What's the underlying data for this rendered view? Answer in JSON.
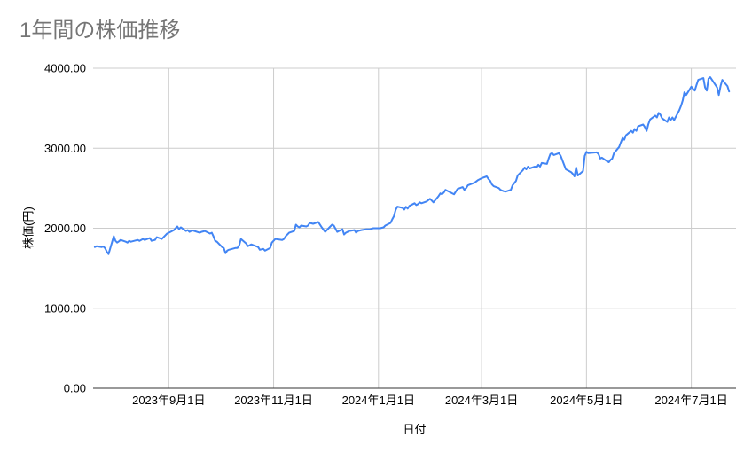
{
  "colors": {
    "line": "#4285f4",
    "grid": "#cccccc",
    "axis": "#333333",
    "title": "#757575",
    "label": "#000000",
    "background": "#ffffff"
  },
  "chart_data": {
    "type": "line",
    "title": "1年間の株価推移",
    "xlabel": "日付",
    "ylabel": "株価(円)",
    "ylim": [
      0,
      4000
    ],
    "grid": true,
    "legend": "none",
    "x_domain": [
      "2023-07-19",
      "2024-07-27"
    ],
    "y_ticks": [
      {
        "value": 0,
        "label": "0.00"
      },
      {
        "value": 1000,
        "label": "1000.00"
      },
      {
        "value": 2000,
        "label": "2000.00"
      },
      {
        "value": 3000,
        "label": "3000.00"
      },
      {
        "value": 4000,
        "label": "4000.00"
      }
    ],
    "x_ticks": [
      {
        "date": "2023-09-01",
        "label": "2023年9月1日"
      },
      {
        "date": "2023-11-01",
        "label": "2023年11月1日"
      },
      {
        "date": "2024-01-01",
        "label": "2024年1月1日"
      },
      {
        "date": "2024-03-01",
        "label": "2024年3月1日"
      },
      {
        "date": "2024-05-01",
        "label": "2024年5月1日"
      },
      {
        "date": "2024-07-01",
        "label": "2024年7月1日"
      }
    ],
    "series": [
      {
        "color": "#4285f4",
        "points": [
          [
            "2023-07-20",
            1765
          ],
          [
            "2023-07-21",
            1775
          ],
          [
            "2023-07-24",
            1765
          ],
          [
            "2023-07-25",
            1772
          ],
          [
            "2023-07-26",
            1748
          ],
          [
            "2023-07-27",
            1705
          ],
          [
            "2023-07-28",
            1676
          ],
          [
            "2023-07-31",
            1900
          ],
          [
            "2023-08-01",
            1843
          ],
          [
            "2023-08-02",
            1821
          ],
          [
            "2023-08-03",
            1836
          ],
          [
            "2023-08-04",
            1854
          ],
          [
            "2023-08-07",
            1832
          ],
          [
            "2023-08-08",
            1821
          ],
          [
            "2023-08-09",
            1843
          ],
          [
            "2023-08-10",
            1832
          ],
          [
            "2023-08-14",
            1854
          ],
          [
            "2023-08-15",
            1843
          ],
          [
            "2023-08-17",
            1866
          ],
          [
            "2023-08-18",
            1854
          ],
          [
            "2023-08-21",
            1877
          ],
          [
            "2023-08-22",
            1843
          ],
          [
            "2023-08-24",
            1854
          ],
          [
            "2023-08-25",
            1888
          ],
          [
            "2023-08-28",
            1866
          ],
          [
            "2023-08-30",
            1910
          ],
          [
            "2023-08-31",
            1933
          ],
          [
            "2023-09-01",
            1944
          ],
          [
            "2023-09-04",
            1977
          ],
          [
            "2023-09-05",
            2000
          ],
          [
            "2023-09-06",
            2022
          ],
          [
            "2023-09-07",
            1988
          ],
          [
            "2023-09-08",
            2011
          ],
          [
            "2023-09-11",
            1966
          ],
          [
            "2023-09-12",
            1977
          ],
          [
            "2023-09-13",
            1955
          ],
          [
            "2023-09-14",
            1966
          ],
          [
            "2023-09-15",
            1972
          ],
          [
            "2023-09-19",
            1944
          ],
          [
            "2023-09-20",
            1955
          ],
          [
            "2023-09-22",
            1966
          ],
          [
            "2023-09-25",
            1933
          ],
          [
            "2023-09-26",
            1944
          ],
          [
            "2023-09-27",
            1899
          ],
          [
            "2023-09-28",
            1843
          ],
          [
            "2023-09-29",
            1832
          ],
          [
            "2023-10-02",
            1765
          ],
          [
            "2023-10-03",
            1754
          ],
          [
            "2023-10-04",
            1687
          ],
          [
            "2023-10-05",
            1720
          ],
          [
            "2023-10-06",
            1731
          ],
          [
            "2023-10-10",
            1754
          ],
          [
            "2023-10-11",
            1754
          ],
          [
            "2023-10-12",
            1787
          ],
          [
            "2023-10-13",
            1866
          ],
          [
            "2023-10-16",
            1810
          ],
          [
            "2023-10-17",
            1776
          ],
          [
            "2023-10-18",
            1787
          ],
          [
            "2023-10-19",
            1798
          ],
          [
            "2023-10-23",
            1765
          ],
          [
            "2023-10-24",
            1731
          ],
          [
            "2023-10-26",
            1742
          ],
          [
            "2023-10-27",
            1720
          ],
          [
            "2023-10-30",
            1754
          ],
          [
            "2023-10-31",
            1821
          ],
          [
            "2023-11-01",
            1843
          ],
          [
            "2023-11-02",
            1866
          ],
          [
            "2023-11-06",
            1854
          ],
          [
            "2023-11-07",
            1866
          ],
          [
            "2023-11-08",
            1899
          ],
          [
            "2023-11-09",
            1921
          ],
          [
            "2023-11-10",
            1944
          ],
          [
            "2023-11-13",
            1966
          ],
          [
            "2023-11-14",
            2044
          ],
          [
            "2023-11-15",
            2022
          ],
          [
            "2023-11-16",
            2011
          ],
          [
            "2023-11-17",
            2033
          ],
          [
            "2023-11-20",
            2022
          ],
          [
            "2023-11-21",
            2033
          ],
          [
            "2023-11-22",
            2067
          ],
          [
            "2023-11-24",
            2055
          ],
          [
            "2023-11-27",
            2078
          ],
          [
            "2023-11-29",
            2011
          ],
          [
            "2023-12-01",
            1955
          ],
          [
            "2023-12-04",
            2022
          ],
          [
            "2023-12-05",
            2044
          ],
          [
            "2023-12-06",
            2033
          ],
          [
            "2023-12-08",
            1955
          ],
          [
            "2023-12-11",
            1988
          ],
          [
            "2023-12-12",
            1921
          ],
          [
            "2023-12-13",
            1944
          ],
          [
            "2023-12-15",
            1966
          ],
          [
            "2023-12-18",
            1977
          ],
          [
            "2023-12-19",
            1944
          ],
          [
            "2023-12-20",
            1966
          ],
          [
            "2023-12-22",
            1977
          ],
          [
            "2023-12-25",
            1988
          ],
          [
            "2023-12-27",
            1988
          ],
          [
            "2023-12-29",
            2000
          ],
          [
            "2024-01-02",
            2000
          ],
          [
            "2024-01-04",
            2011
          ],
          [
            "2024-01-05",
            2033
          ],
          [
            "2024-01-08",
            2067
          ],
          [
            "2024-01-09",
            2111
          ],
          [
            "2024-01-10",
            2150
          ],
          [
            "2024-01-11",
            2230
          ],
          [
            "2024-01-12",
            2270
          ],
          [
            "2024-01-15",
            2255
          ],
          [
            "2024-01-16",
            2234
          ],
          [
            "2024-01-17",
            2268
          ],
          [
            "2024-01-18",
            2246
          ],
          [
            "2024-01-19",
            2279
          ],
          [
            "2024-01-22",
            2312
          ],
          [
            "2024-01-23",
            2290
          ],
          [
            "2024-01-24",
            2301
          ],
          [
            "2024-01-25",
            2324
          ],
          [
            "2024-01-26",
            2312
          ],
          [
            "2024-01-29",
            2335
          ],
          [
            "2024-01-31",
            2368
          ],
          [
            "2024-02-01",
            2346
          ],
          [
            "2024-02-02",
            2324
          ],
          [
            "2024-02-05",
            2402
          ],
          [
            "2024-02-06",
            2435
          ],
          [
            "2024-02-07",
            2424
          ],
          [
            "2024-02-08",
            2446
          ],
          [
            "2024-02-09",
            2480
          ],
          [
            "2024-02-13",
            2435
          ],
          [
            "2024-02-14",
            2424
          ],
          [
            "2024-02-15",
            2458
          ],
          [
            "2024-02-16",
            2491
          ],
          [
            "2024-02-19",
            2514
          ],
          [
            "2024-02-20",
            2480
          ],
          [
            "2024-02-21",
            2502
          ],
          [
            "2024-02-22",
            2536
          ],
          [
            "2024-02-26",
            2569
          ],
          [
            "2024-02-28",
            2603
          ],
          [
            "2024-03-01",
            2625
          ],
          [
            "2024-03-04",
            2648
          ],
          [
            "2024-03-05",
            2614
          ],
          [
            "2024-03-06",
            2592
          ],
          [
            "2024-03-07",
            2547
          ],
          [
            "2024-03-08",
            2525
          ],
          [
            "2024-03-11",
            2502
          ],
          [
            "2024-03-12",
            2480
          ],
          [
            "2024-03-13",
            2470
          ],
          [
            "2024-03-14",
            2462
          ],
          [
            "2024-03-15",
            2458
          ],
          [
            "2024-03-18",
            2480
          ],
          [
            "2024-03-19",
            2536
          ],
          [
            "2024-03-21",
            2592
          ],
          [
            "2024-03-22",
            2660
          ],
          [
            "2024-03-25",
            2725
          ],
          [
            "2024-03-26",
            2759
          ],
          [
            "2024-03-27",
            2737
          ],
          [
            "2024-03-28",
            2770
          ],
          [
            "2024-03-29",
            2748
          ],
          [
            "2024-04-01",
            2770
          ],
          [
            "2024-04-02",
            2759
          ],
          [
            "2024-04-03",
            2793
          ],
          [
            "2024-04-04",
            2770
          ],
          [
            "2024-04-05",
            2815
          ],
          [
            "2024-04-08",
            2804
          ],
          [
            "2024-04-09",
            2871
          ],
          [
            "2024-04-10",
            2927
          ],
          [
            "2024-04-11",
            2938
          ],
          [
            "2024-04-12",
            2915
          ],
          [
            "2024-04-15",
            2938
          ],
          [
            "2024-04-16",
            2904
          ],
          [
            "2024-04-17",
            2849
          ],
          [
            "2024-04-18",
            2793
          ],
          [
            "2024-04-19",
            2737
          ],
          [
            "2024-04-22",
            2703
          ],
          [
            "2024-04-23",
            2681
          ],
          [
            "2024-04-24",
            2648
          ],
          [
            "2024-04-25",
            2759
          ],
          [
            "2024-04-26",
            2659
          ],
          [
            "2024-04-29",
            2715
          ],
          [
            "2024-04-30",
            2904
          ],
          [
            "2024-05-01",
            2955
          ],
          [
            "2024-05-02",
            2938
          ],
          [
            "2024-05-07",
            2949
          ],
          [
            "2024-05-08",
            2927
          ],
          [
            "2024-05-09",
            2871
          ],
          [
            "2024-05-10",
            2882
          ],
          [
            "2024-05-13",
            2838
          ],
          [
            "2024-05-14",
            2826
          ],
          [
            "2024-05-15",
            2855
          ],
          [
            "2024-05-16",
            2871
          ],
          [
            "2024-05-17",
            2938
          ],
          [
            "2024-05-20",
            3016
          ],
          [
            "2024-05-21",
            3073
          ],
          [
            "2024-05-22",
            3128
          ],
          [
            "2024-05-23",
            3106
          ],
          [
            "2024-05-24",
            3161
          ],
          [
            "2024-05-27",
            3217
          ],
          [
            "2024-05-28",
            3195
          ],
          [
            "2024-05-29",
            3240
          ],
          [
            "2024-05-30",
            3217
          ],
          [
            "2024-05-31",
            3273
          ],
          [
            "2024-06-03",
            3296
          ],
          [
            "2024-06-04",
            3262
          ],
          [
            "2024-06-05",
            3217
          ],
          [
            "2024-06-06",
            3300
          ],
          [
            "2024-06-07",
            3360
          ],
          [
            "2024-06-10",
            3408
          ],
          [
            "2024-06-11",
            3385
          ],
          [
            "2024-06-12",
            3441
          ],
          [
            "2024-06-13",
            3419
          ],
          [
            "2024-06-14",
            3374
          ],
          [
            "2024-06-17",
            3329
          ],
          [
            "2024-06-18",
            3385
          ],
          [
            "2024-06-19",
            3352
          ],
          [
            "2024-06-20",
            3385
          ],
          [
            "2024-06-21",
            3352
          ],
          [
            "2024-06-24",
            3475
          ],
          [
            "2024-06-25",
            3530
          ],
          [
            "2024-06-26",
            3598
          ],
          [
            "2024-06-27",
            3700
          ],
          [
            "2024-06-28",
            3665
          ],
          [
            "2024-07-01",
            3770
          ],
          [
            "2024-07-02",
            3743
          ],
          [
            "2024-07-03",
            3721
          ],
          [
            "2024-07-04",
            3790
          ],
          [
            "2024-07-05",
            3855
          ],
          [
            "2024-07-08",
            3877
          ],
          [
            "2024-07-09",
            3760
          ],
          [
            "2024-07-10",
            3721
          ],
          [
            "2024-07-11",
            3870
          ],
          [
            "2024-07-12",
            3888
          ],
          [
            "2024-07-16",
            3760
          ],
          [
            "2024-07-17",
            3665
          ],
          [
            "2024-07-18",
            3780
          ],
          [
            "2024-07-19",
            3855
          ],
          [
            "2024-07-22",
            3777
          ],
          [
            "2024-07-23",
            3710
          ]
        ]
      }
    ]
  }
}
